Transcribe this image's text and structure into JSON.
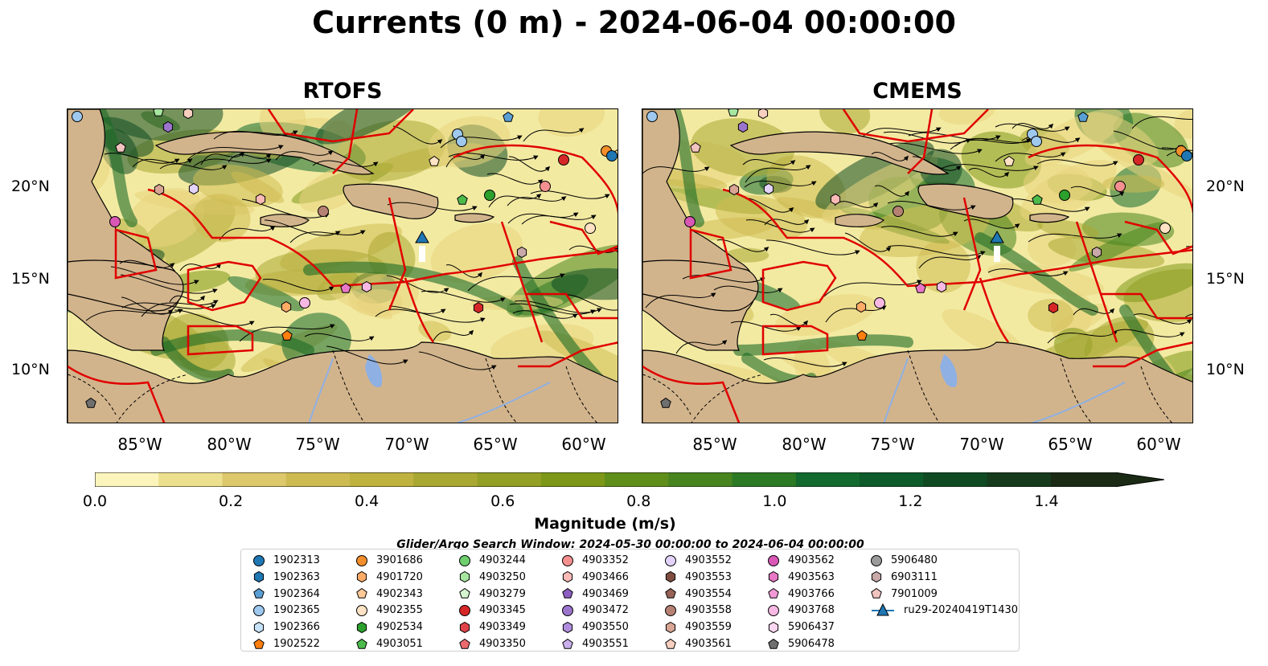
{
  "title": "Currents (0 m) - 2024-06-04 00:00:00",
  "panels": [
    {
      "title": "RTOFS"
    },
    {
      "title": "CMEMS"
    }
  ],
  "latitude_labels": [
    "20°N",
    "15°N",
    "10°N"
  ],
  "longitude_labels": [
    "85°W",
    "80°W",
    "75°W",
    "70°W",
    "65°W",
    "60°W"
  ],
  "colorbar": {
    "label": "Magnitude (m/s)",
    "ticks": [
      "0.0",
      "0.2",
      "0.4",
      "0.6",
      "0.8",
      "1.0",
      "1.2",
      "1.4"
    ],
    "range": [
      0.0,
      1.5
    ],
    "colors": [
      "#fbf5bc",
      "#ece08f",
      "#ddc86c",
      "#cdbb52",
      "#bfb23f",
      "#a9a833",
      "#949f26",
      "#7d9818",
      "#5f8e1a",
      "#48851f",
      "#2d7a24",
      "#136a2e",
      "#0d5a2a",
      "#0f4a23",
      "#153a1c",
      "#1a2a15"
    ]
  },
  "search_window": "Glider/Argo Search Window: 2024-05-30 00:00:00 to 2024-06-04 00:00:00",
  "legend": [
    {
      "label": "1902313",
      "marker": "circle",
      "color": "#1f77b4"
    },
    {
      "label": "1902363",
      "marker": "hexagon",
      "color": "#1f77b4"
    },
    {
      "label": "1902364",
      "marker": "pentagon",
      "color": "#5a9fd4"
    },
    {
      "label": "1902365",
      "marker": "circle",
      "color": "#9ec8ee"
    },
    {
      "label": "1902366",
      "marker": "hexagon",
      "color": "#c6e2f7"
    },
    {
      "label": "1902522",
      "marker": "pentagon",
      "color": "#ff7f0e"
    },
    {
      "label": "3901686",
      "marker": "circle",
      "color": "#f28e2b"
    },
    {
      "label": "4901720",
      "marker": "hexagon",
      "color": "#ffab66"
    },
    {
      "label": "4902343",
      "marker": "pentagon",
      "color": "#ffc998"
    },
    {
      "label": "4902355",
      "marker": "circle",
      "color": "#ffe3c4"
    },
    {
      "label": "4902534",
      "marker": "hexagon",
      "color": "#2ca02c"
    },
    {
      "label": "4903051",
      "marker": "pentagon",
      "color": "#4cbb4c"
    },
    {
      "label": "4903244",
      "marker": "circle",
      "color": "#6fcf6f"
    },
    {
      "label": "4903250",
      "marker": "hexagon",
      "color": "#a6e6a0"
    },
    {
      "label": "4903279",
      "marker": "pentagon",
      "color": "#d5f5cf"
    },
    {
      "label": "4903345",
      "marker": "circle",
      "color": "#d62728"
    },
    {
      "label": "4903349",
      "marker": "hexagon",
      "color": "#e0444a"
    },
    {
      "label": "4903350",
      "marker": "pentagon",
      "color": "#ec6a6e"
    },
    {
      "label": "4903352",
      "marker": "circle",
      "color": "#f4908f"
    },
    {
      "label": "4903466",
      "marker": "hexagon",
      "color": "#fbbab6"
    },
    {
      "label": "4903469",
      "marker": "pentagon",
      "color": "#8c5fc0"
    },
    {
      "label": "4903472",
      "marker": "circle",
      "color": "#9b74cc"
    },
    {
      "label": "4903550",
      "marker": "hexagon",
      "color": "#b08ddc"
    },
    {
      "label": "4903551",
      "marker": "pentagon",
      "color": "#c9b0ec"
    },
    {
      "label": "4903552",
      "marker": "circle",
      "color": "#e3d3f8"
    },
    {
      "label": "4903553",
      "marker": "hexagon",
      "color": "#7e4d40"
    },
    {
      "label": "4903554",
      "marker": "pentagon",
      "color": "#966356"
    },
    {
      "label": "4903558",
      "marker": "circle",
      "color": "#b68173"
    },
    {
      "label": "4903559",
      "marker": "hexagon",
      "color": "#d9a594"
    },
    {
      "label": "4903561",
      "marker": "pentagon",
      "color": "#f7cfbf"
    },
    {
      "label": "4903562",
      "marker": "circle",
      "color": "#d957b5"
    },
    {
      "label": "4903563",
      "marker": "hexagon",
      "color": "#e877c6"
    },
    {
      "label": "4903766",
      "marker": "pentagon",
      "color": "#f29ad6"
    },
    {
      "label": "4903768",
      "marker": "circle",
      "color": "#f7b8e3"
    },
    {
      "label": "5906437",
      "marker": "hexagon",
      "color": "#fbd6f0"
    },
    {
      "label": "5906478",
      "marker": "pentagon",
      "color": "#6f6f6f"
    },
    {
      "label": "5906480",
      "marker": "circle",
      "color": "#9a9a9a"
    },
    {
      "label": "6903111",
      "marker": "hexagon",
      "color": "#c8a8a8"
    },
    {
      "label": "7901009",
      "marker": "pentagon",
      "color": "#f2c4c0"
    },
    {
      "label": "ru29-20240419T1430",
      "marker": "glider",
      "color": "#1f77b4"
    }
  ]
}
